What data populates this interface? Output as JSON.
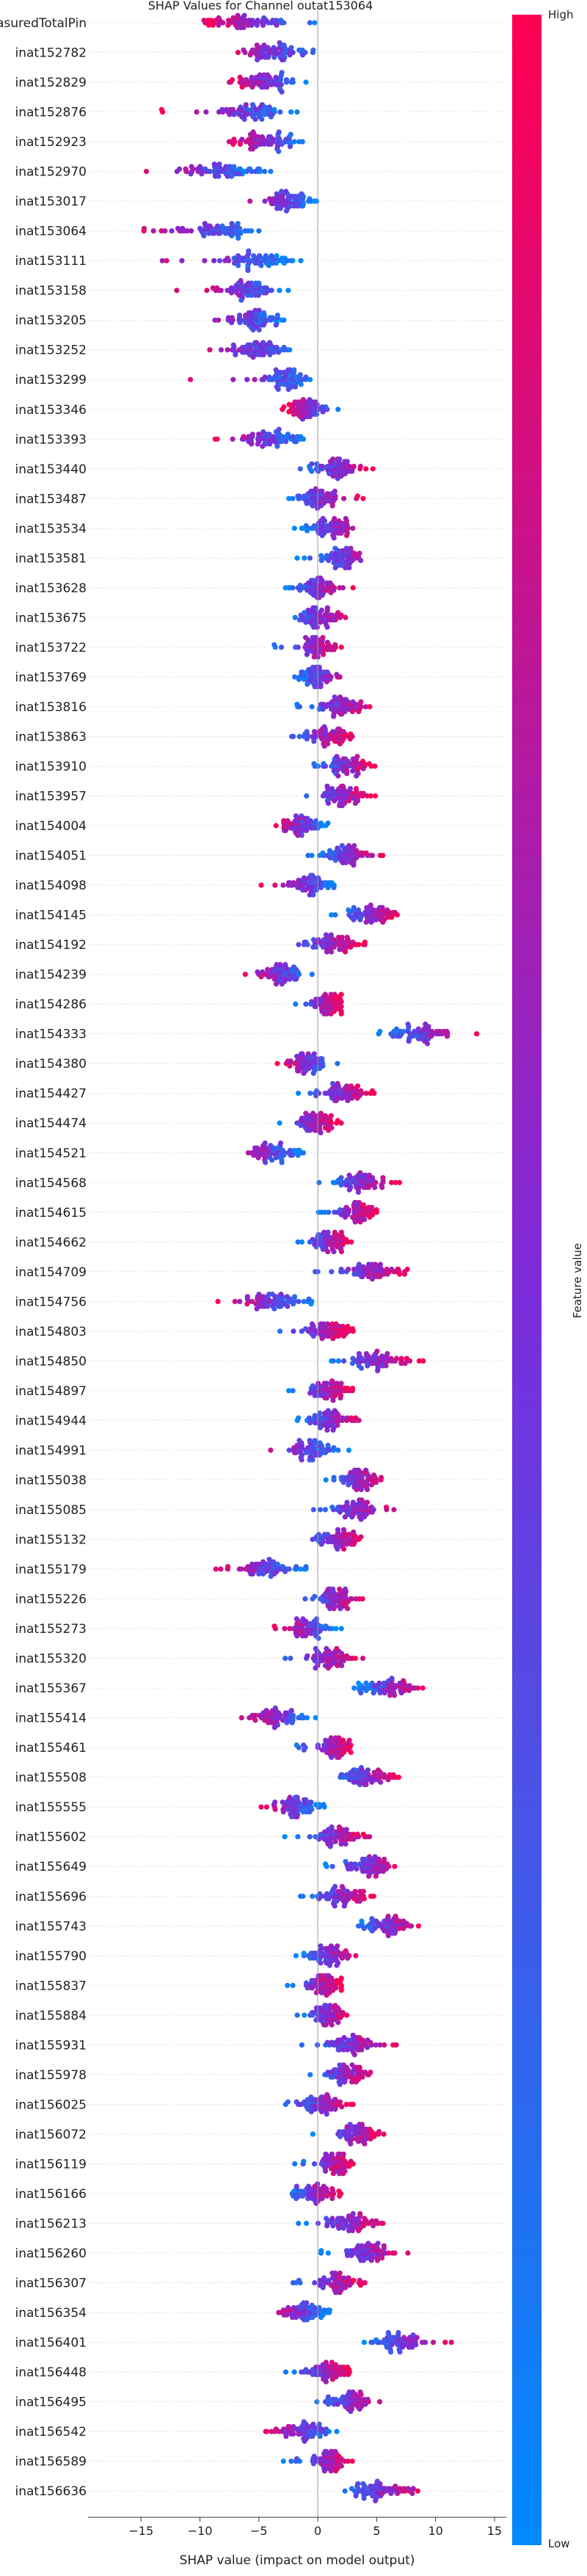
{
  "chart_data": {
    "type": "scatter",
    "subtype": "shap-beeswarm",
    "title": "SHAP Values for Channel outat153064",
    "xlabel": "SHAP value (impact on model output)",
    "xlim": [
      -19.5,
      16
    ],
    "xticks": [
      -15,
      -10,
      -5,
      0,
      5,
      10,
      15
    ],
    "colorbar": {
      "label": "Feature value",
      "high": "High",
      "low": "Low",
      "color_low": "#008afb",
      "color_high": "#ff0052"
    },
    "features": [
      {
        "name": "measuredTotalPin",
        "center": -6,
        "spread": 4,
        "min": -10,
        "max": 0,
        "corr": -1
      },
      {
        "name": "inat152782",
        "center": -4,
        "spread": 2.5,
        "min": -9,
        "max": 1,
        "corr": -1
      },
      {
        "name": "inat152829",
        "center": -4.5,
        "spread": 2.5,
        "min": -8,
        "max": -1,
        "corr": -1
      },
      {
        "name": "inat152876",
        "center": -5.5,
        "spread": 2.5,
        "min": -13.5,
        "max": -1,
        "corr": -1
      },
      {
        "name": "inat152923",
        "center": -4.5,
        "spread": 2.5,
        "min": -8,
        "max": -1,
        "corr": -1
      },
      {
        "name": "inat152970",
        "center": -8,
        "spread": 3,
        "min": -16,
        "max": -4,
        "corr": -1
      },
      {
        "name": "inat153017",
        "center": -2.5,
        "spread": 2,
        "min": -7,
        "max": 0,
        "corr": -1
      },
      {
        "name": "inat153064",
        "center": -9,
        "spread": 3,
        "min": -16,
        "max": -5,
        "corr": -1
      },
      {
        "name": "inat153111",
        "center": -5,
        "spread": 3,
        "min": -17,
        "max": -1,
        "corr": -1
      },
      {
        "name": "inat153158",
        "center": -6,
        "spread": 2.5,
        "min": -12,
        "max": -2,
        "corr": -1
      },
      {
        "name": "inat153205",
        "center": -5.5,
        "spread": 2,
        "min": -12,
        "max": -2,
        "corr": -1
      },
      {
        "name": "inat153252",
        "center": -5,
        "spread": 2.5,
        "min": -12,
        "max": -1,
        "corr": -1
      },
      {
        "name": "inat153299",
        "center": -2.5,
        "spread": 2,
        "min": -11,
        "max": 0,
        "corr": -1
      },
      {
        "name": "inat153346",
        "center": -1,
        "spread": 1.5,
        "min": -3,
        "max": 2,
        "corr": -1
      },
      {
        "name": "inat153393",
        "center": -4,
        "spread": 2.5,
        "min": -9,
        "max": -1,
        "corr": -1
      },
      {
        "name": "inat153440",
        "center": 1.5,
        "spread": 2,
        "min": -2,
        "max": 5,
        "corr": 1
      },
      {
        "name": "inat153487",
        "center": 0,
        "spread": 1.8,
        "min": -3,
        "max": 4,
        "corr": 1
      },
      {
        "name": "inat153534",
        "center": 1,
        "spread": 1.8,
        "min": -2,
        "max": 4,
        "corr": 1
      },
      {
        "name": "inat153581",
        "center": 2,
        "spread": 2,
        "min": -2,
        "max": 7,
        "corr": 1
      },
      {
        "name": "inat153628",
        "center": 0,
        "spread": 1.5,
        "min": -3,
        "max": 3,
        "corr": 1
      },
      {
        "name": "inat153675",
        "center": 0,
        "spread": 1.8,
        "min": -3,
        "max": 3,
        "corr": 1
      },
      {
        "name": "inat153722",
        "center": 0,
        "spread": 1.5,
        "min": -4,
        "max": 2,
        "corr": 1
      },
      {
        "name": "inat153769",
        "center": 0,
        "spread": 1.5,
        "min": -2,
        "max": 3,
        "corr": 1
      },
      {
        "name": "inat153816",
        "center": 2,
        "spread": 2,
        "min": -2,
        "max": 5,
        "corr": 1
      },
      {
        "name": "inat153863",
        "center": 1,
        "spread": 1.8,
        "min": -3,
        "max": 3,
        "corr": 1
      },
      {
        "name": "inat153910",
        "center": 2.5,
        "spread": 1.8,
        "min": -1,
        "max": 5,
        "corr": 1
      },
      {
        "name": "inat153957",
        "center": 2,
        "spread": 2,
        "min": -2,
        "max": 5,
        "corr": 1
      },
      {
        "name": "inat154004",
        "center": -1.5,
        "spread": 1.8,
        "min": -4,
        "max": 1,
        "corr": -1
      },
      {
        "name": "inat154051",
        "center": 2.5,
        "spread": 2,
        "min": -1,
        "max": 6,
        "corr": 1
      },
      {
        "name": "inat154098",
        "center": -0.5,
        "spread": 2,
        "min": -5,
        "max": 2,
        "corr": -1
      },
      {
        "name": "inat154145",
        "center": 4.5,
        "spread": 2,
        "min": 1,
        "max": 7,
        "corr": 1
      },
      {
        "name": "inat154192",
        "center": 1.5,
        "spread": 2,
        "min": -3,
        "max": 4,
        "corr": 1
      },
      {
        "name": "inat154239",
        "center": -3,
        "spread": 2,
        "min": -7,
        "max": 0,
        "corr": -1
      },
      {
        "name": "inat154286",
        "center": 1,
        "spread": 1.5,
        "min": -2,
        "max": 2,
        "corr": 1
      },
      {
        "name": "inat154333",
        "center": 9,
        "spread": 3,
        "min": 5,
        "max": 14,
        "corr": 1
      },
      {
        "name": "inat154380",
        "center": -1,
        "spread": 1.8,
        "min": -4,
        "max": 2,
        "corr": -1
      },
      {
        "name": "inat154427",
        "center": 2,
        "spread": 2,
        "min": -2,
        "max": 5,
        "corr": 1
      },
      {
        "name": "inat154474",
        "center": 0,
        "spread": 1.8,
        "min": -4,
        "max": 2,
        "corr": 1
      },
      {
        "name": "inat154521",
        "center": -4,
        "spread": 2,
        "min": -8,
        "max": -1,
        "corr": -1
      },
      {
        "name": "inat154568",
        "center": 3.5,
        "spread": 2.2,
        "min": 0,
        "max": 7,
        "corr": 1
      },
      {
        "name": "inat154615",
        "center": 3.5,
        "spread": 1.8,
        "min": 0,
        "max": 5,
        "corr": 1
      },
      {
        "name": "inat154662",
        "center": 1,
        "spread": 1.8,
        "min": -2,
        "max": 3,
        "corr": 1
      },
      {
        "name": "inat154709",
        "center": 4.5,
        "spread": 2.5,
        "min": -2,
        "max": 9,
        "corr": 1
      },
      {
        "name": "inat154756",
        "center": -3.5,
        "spread": 2.5,
        "min": -9,
        "max": 0,
        "corr": -1
      },
      {
        "name": "inat154803",
        "center": 1,
        "spread": 1.8,
        "min": -4,
        "max": 3,
        "corr": 1
      },
      {
        "name": "inat154850",
        "center": 5,
        "spread": 2.5,
        "min": 0,
        "max": 9,
        "corr": 1
      },
      {
        "name": "inat154897",
        "center": 1,
        "spread": 1.8,
        "min": -3,
        "max": 3,
        "corr": 1
      },
      {
        "name": "inat154944",
        "center": 1,
        "spread": 1.8,
        "min": -2,
        "max": 4,
        "corr": 1
      },
      {
        "name": "inat154991",
        "center": -0.5,
        "spread": 2,
        "min": -7,
        "max": 3,
        "corr": -1
      },
      {
        "name": "inat155038",
        "center": 3.5,
        "spread": 1.8,
        "min": 0,
        "max": 6,
        "corr": 1
      },
      {
        "name": "inat155085",
        "center": 3.5,
        "spread": 2,
        "min": -1,
        "max": 7,
        "corr": 1
      },
      {
        "name": "inat155132",
        "center": 2,
        "spread": 1.8,
        "min": -2,
        "max": 4,
        "corr": 1
      },
      {
        "name": "inat155179",
        "center": -4,
        "spread": 2.5,
        "min": -9,
        "max": -1,
        "corr": -1
      },
      {
        "name": "inat155226",
        "center": 1.5,
        "spread": 1.8,
        "min": -2,
        "max": 4,
        "corr": 1
      },
      {
        "name": "inat155273",
        "center": -0.5,
        "spread": 1.8,
        "min": -4,
        "max": 2,
        "corr": -1
      },
      {
        "name": "inat155320",
        "center": 1,
        "spread": 1.8,
        "min": -4,
        "max": 4,
        "corr": 1
      },
      {
        "name": "inat155367",
        "center": 6,
        "spread": 2.2,
        "min": 3,
        "max": 9,
        "corr": 1
      },
      {
        "name": "inat155414",
        "center": -3.5,
        "spread": 2.2,
        "min": -7,
        "max": 0,
        "corr": -1
      },
      {
        "name": "inat155461",
        "center": 1.5,
        "spread": 1.5,
        "min": -2,
        "max": 3,
        "corr": 1
      },
      {
        "name": "inat155508",
        "center": 4,
        "spread": 2,
        "min": 1,
        "max": 7,
        "corr": 1
      },
      {
        "name": "inat155555",
        "center": -2,
        "spread": 2,
        "min": -6,
        "max": 1,
        "corr": -1
      },
      {
        "name": "inat155602",
        "center": 2,
        "spread": 2,
        "min": -3,
        "max": 5,
        "corr": 1
      },
      {
        "name": "inat155649",
        "center": 4.5,
        "spread": 2,
        "min": 0,
        "max": 8,
        "corr": 1
      },
      {
        "name": "inat155696",
        "center": 2,
        "spread": 2,
        "min": -2,
        "max": 5,
        "corr": 1
      },
      {
        "name": "inat155743",
        "center": 6,
        "spread": 2,
        "min": 3,
        "max": 9,
        "corr": 1
      },
      {
        "name": "inat155790",
        "center": 1,
        "spread": 1.8,
        "min": -2,
        "max": 4,
        "corr": 1
      },
      {
        "name": "inat155837",
        "center": 0.5,
        "spread": 1.5,
        "min": -3,
        "max": 2,
        "corr": 1
      },
      {
        "name": "inat155884",
        "center": 1,
        "spread": 1.5,
        "min": -2,
        "max": 3,
        "corr": 1
      },
      {
        "name": "inat155931",
        "center": 3,
        "spread": 2,
        "min": -2,
        "max": 7,
        "corr": 1
      },
      {
        "name": "inat155978",
        "center": 2.5,
        "spread": 1.8,
        "min": -1,
        "max": 5,
        "corr": 1
      },
      {
        "name": "inat156025",
        "center": 0.5,
        "spread": 1.8,
        "min": -3,
        "max": 3,
        "corr": 1
      },
      {
        "name": "inat156072",
        "center": 3.5,
        "spread": 1.8,
        "min": -1,
        "max": 6,
        "corr": 1
      },
      {
        "name": "inat156119",
        "center": 1.5,
        "spread": 1.5,
        "min": -2,
        "max": 3,
        "corr": 1
      },
      {
        "name": "inat156166",
        "center": 0,
        "spread": 1.8,
        "min": -3,
        "max": 2,
        "corr": 1
      },
      {
        "name": "inat156213",
        "center": 2.5,
        "spread": 2,
        "min": -2,
        "max": 6,
        "corr": 1
      },
      {
        "name": "inat156260",
        "center": 4.5,
        "spread": 2,
        "min": 0,
        "max": 8,
        "corr": 1
      },
      {
        "name": "inat156307",
        "center": 1.5,
        "spread": 2,
        "min": -3,
        "max": 4,
        "corr": 1
      },
      {
        "name": "inat156354",
        "center": -1,
        "spread": 1.8,
        "min": -4,
        "max": 1,
        "corr": -1
      },
      {
        "name": "inat156401",
        "center": 7,
        "spread": 2.5,
        "min": 3,
        "max": 12.5,
        "corr": 1
      },
      {
        "name": "inat156448",
        "center": 1,
        "spread": 1.8,
        "min": -3,
        "max": 3,
        "corr": 1
      },
      {
        "name": "inat156495",
        "center": 3,
        "spread": 1.8,
        "min": -1,
        "max": 6,
        "corr": 1
      },
      {
        "name": "inat156542",
        "center": -1,
        "spread": 2,
        "min": -5,
        "max": 2,
        "corr": -1
      },
      {
        "name": "inat156589",
        "center": 1,
        "spread": 1.5,
        "min": -3,
        "max": 3,
        "corr": 1
      },
      {
        "name": "inat156636",
        "center": 5,
        "spread": 2.5,
        "min": 1,
        "max": 10,
        "corr": 1
      }
    ]
  }
}
